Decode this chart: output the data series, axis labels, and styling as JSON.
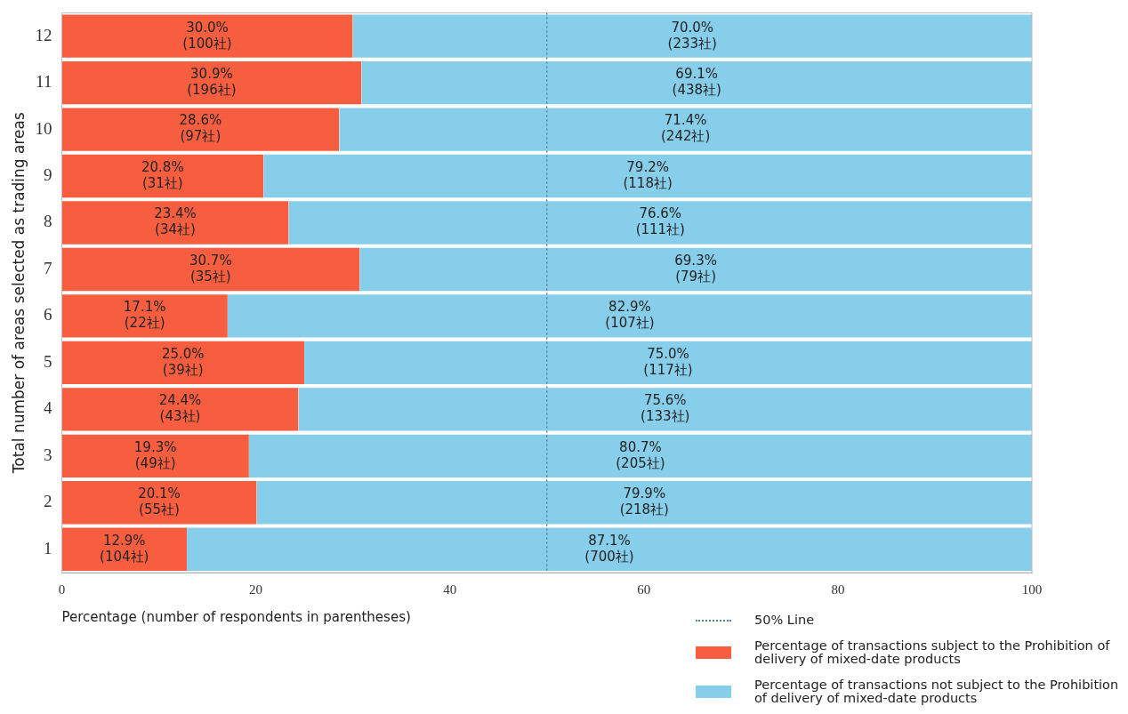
{
  "chart_data": {
    "type": "bar",
    "orientation": "horizontal",
    "stacked": true,
    "xlabel": "Percentage (number of respondents in parentheses)",
    "ylabel": "Total number of areas selected as trading areas",
    "categories": [
      "12",
      "11",
      "10",
      "9",
      "8",
      "7",
      "6",
      "5",
      "4",
      "3",
      "2",
      "1"
    ],
    "series": [
      {
        "name": "Percentage of transactions subject to the Prohibition of delivery of mixed-date products",
        "color": "#f75e40",
        "values": [
          30.0,
          30.9,
          28.6,
          20.8,
          23.4,
          30.7,
          17.1,
          25.0,
          24.4,
          19.3,
          20.1,
          12.9
        ],
        "value_labels": [
          "30.0%\n(100社)",
          "30.9%\n(196社)",
          "28.6%\n(97社)",
          "20.8%\n(31社)",
          "23.4%\n(34社)",
          "30.7%\n(35社)",
          "17.1%\n(22社)",
          "25.0%\n(39社)",
          "24.4%\n(43社)",
          "19.3%\n(49社)",
          "20.1%\n(55社)",
          "12.9%\n(104社)"
        ]
      },
      {
        "name": "Percentage of transactions not subject to the Prohibition of delivery of mixed-date products",
        "color": "#87ceeb",
        "values": [
          70.0,
          69.1,
          71.4,
          79.2,
          76.6,
          69.3,
          82.9,
          75.0,
          75.6,
          80.7,
          79.9,
          87.1
        ],
        "value_labels": [
          "70.0%\n(233社)",
          "69.1%\n(438社)",
          "71.4%\n(242社)",
          "79.2%\n(118社)",
          "76.6%\n(111社)",
          "69.3%\n(79社)",
          "82.9%\n(107社)",
          "75.0%\n(117社)",
          "75.6%\n(133社)",
          "80.7%\n(205社)",
          "79.9%\n(218社)",
          "87.1%\n(700社)"
        ]
      }
    ],
    "xlim": [
      0,
      100
    ],
    "xticks": [
      0,
      20,
      40,
      60,
      80,
      100
    ],
    "ref_lines": [
      {
        "axis": "x",
        "value": 50,
        "label": "50% Line",
        "color": "#5a7fa0",
        "line_style": "dotted"
      }
    ],
    "grid": false,
    "legend": "bottom right"
  }
}
